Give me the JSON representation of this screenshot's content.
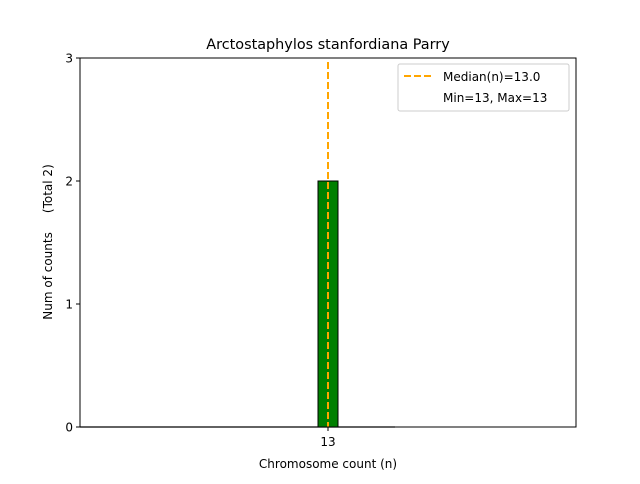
{
  "chart_data": {
    "type": "bar",
    "title": "Arctostaphylos stanfordiana Parry",
    "xlabel": "Chromosome count (n)",
    "ylabel": "Num of counts     (Total 2)",
    "categories": [
      "13"
    ],
    "x": [
      13
    ],
    "values": [
      2
    ],
    "ylim": [
      0,
      3
    ],
    "yticks": [
      "0",
      "1",
      "2",
      "3"
    ],
    "xticks": [
      "13"
    ],
    "grid": false,
    "bar_color": "#008000",
    "median": 13.0,
    "median_color": "#FFA500",
    "legend": {
      "placement": "top-right",
      "entries": [
        "Median(n)=13.0",
        "Min=13, Max=13"
      ]
    }
  }
}
